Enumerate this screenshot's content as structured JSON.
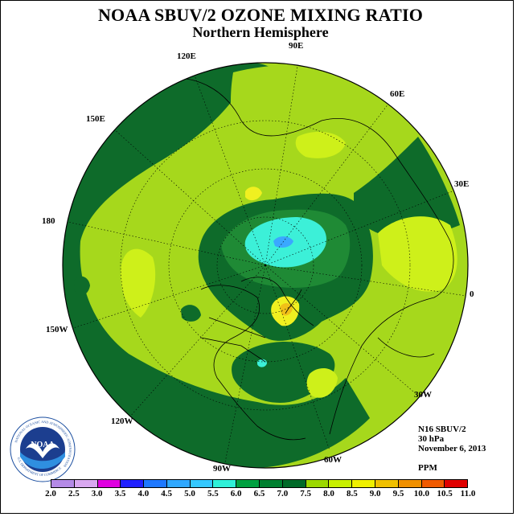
{
  "title": "NOAA SBUV/2 OZONE MIXING RATIO",
  "subtitle": "Northern Hemisphere",
  "longitude_labels": {
    "lon_90e": "90E",
    "lon_120e": "120E",
    "lon_60e": "60E",
    "lon_150e": "150E",
    "lon_30e": "30E",
    "lon_180": "180",
    "lon_0": "0",
    "lon_150w": "150W",
    "lon_30w": "30W",
    "lon_120w": "120W",
    "lon_60w": "60W",
    "lon_90w": "90W"
  },
  "info": {
    "instrument": "N16 SBUV/2",
    "level": "30 hPa",
    "date": "November 6, 2013",
    "units": "PPM"
  },
  "logo": {
    "text": "NOAA",
    "ring_text": "NATIONAL OCEANIC AND ATMOSPHERIC ADMINISTRATION",
    "ring_text_2": "U.S. DEPARTMENT OF COMMERCE"
  },
  "colorbar": {
    "ticks": [
      "2.0",
      "2.5",
      "3.0",
      "3.5",
      "4.0",
      "4.5",
      "5.0",
      "5.5",
      "6.0",
      "6.5",
      "7.0",
      "7.5",
      "8.0",
      "8.5",
      "9.0",
      "9.5",
      "10.0",
      "10.5",
      "11.0"
    ],
    "colors": [
      "#b48ae6",
      "#d9a8f0",
      "#e000e0",
      "#2020ff",
      "#1e78ff",
      "#30a8ff",
      "#35c8ff",
      "#30f0d8",
      "#00a040",
      "#008030",
      "#006a28",
      "#9cd800",
      "#c8f000",
      "#f0f000",
      "#f0c000",
      "#f09000",
      "#f05a00",
      "#e00000",
      "#8b5a3c"
    ]
  },
  "colors": {
    "dark_green": "#0e6b2a",
    "mid_green": "#1f8a35",
    "yellow_green": "#a6d81c",
    "lime": "#cef01a",
    "yellow": "#f0f020",
    "orange": "#f0c018",
    "cyan": "#3cf0d8",
    "blue": "#3aa8ff"
  }
}
